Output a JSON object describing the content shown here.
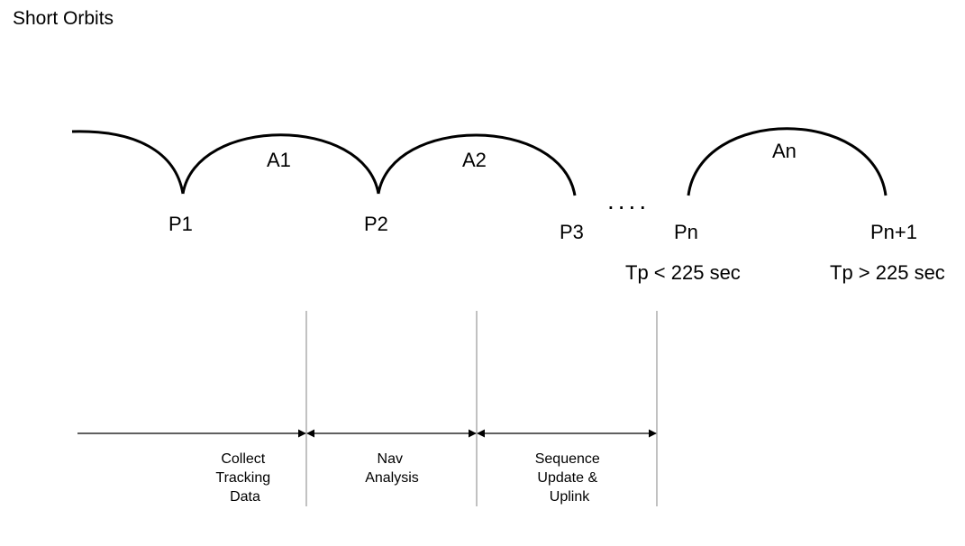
{
  "title": "Short Orbits",
  "apoapses": [
    "A1",
    "A2",
    "An"
  ],
  "periapses": [
    "P1",
    "P2",
    "P3",
    "Pn",
    "Pn+1"
  ],
  "ellipsis": "....",
  "periods": {
    "pn": "Tp < 225 sec",
    "pn1": "Tp > 225 sec"
  },
  "phases": [
    {
      "lines": [
        "Collect",
        "Tracking",
        "Data"
      ]
    },
    {
      "lines": [
        "Nav",
        "Analysis"
      ]
    },
    {
      "lines": [
        "Sequence",
        "Update &",
        "Uplink"
      ]
    }
  ]
}
